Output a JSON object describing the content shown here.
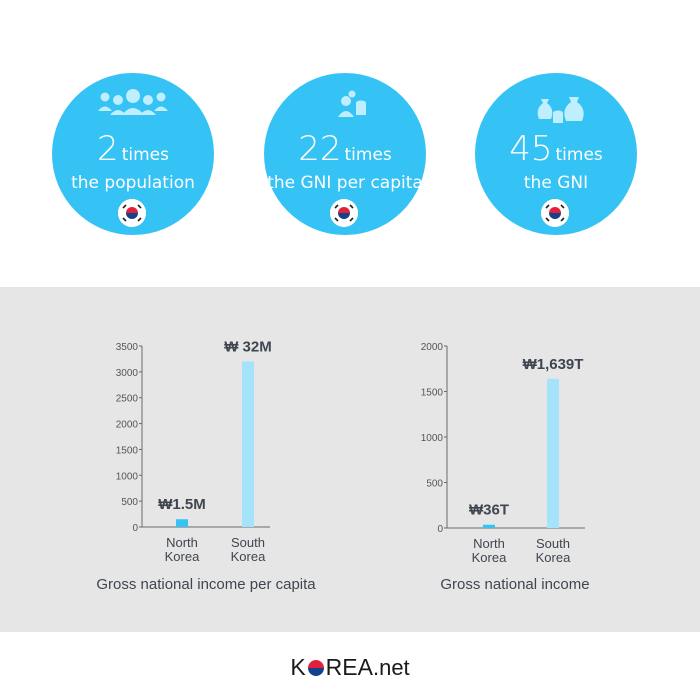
{
  "stats": [
    {
      "number": "2",
      "unit": "times",
      "desc": "the population",
      "icon": "people-icon"
    },
    {
      "number": "22",
      "unit": "times",
      "desc": "the GNI per capita",
      "icon": "person-coins-icon"
    },
    {
      "number": "45",
      "unit": "times",
      "desc": "the GNI",
      "icon": "money-bags-icon"
    }
  ],
  "colors": {
    "circle": "#35c2f5",
    "bar_north": "#35c2f5",
    "bar_south": "#a5e3fb",
    "panel_bg": "#e6e6e6",
    "text_dark": "#3f4650"
  },
  "footer": {
    "logo_k": "K",
    "logo_rest": "REA",
    "logo_net": ".net"
  },
  "chart_data": [
    {
      "type": "bar",
      "title": "Gross national income per capita",
      "categories": [
        "North Korea",
        "South Korea"
      ],
      "category_lines": [
        [
          "North",
          "Korea"
        ],
        [
          "South",
          "Korea"
        ]
      ],
      "values": [
        150,
        3200
      ],
      "data_labels": [
        "₩1.5M",
        "₩ 32M"
      ],
      "ylim": [
        0,
        3500
      ],
      "yticks": [
        0,
        500,
        1000,
        1500,
        2000,
        2500,
        3000,
        3500
      ],
      "grid": false
    },
    {
      "type": "bar",
      "title": "Gross national income",
      "categories": [
        "North Korea",
        "South Korea"
      ],
      "category_lines": [
        [
          "North",
          "Korea"
        ],
        [
          "South",
          "Korea"
        ]
      ],
      "values": [
        36,
        1639
      ],
      "data_labels": [
        "₩36T",
        "₩1,639T"
      ],
      "ylim": [
        0,
        2000
      ],
      "yticks": [
        0,
        500,
        1000,
        1500,
        2000
      ],
      "grid": false
    }
  ]
}
